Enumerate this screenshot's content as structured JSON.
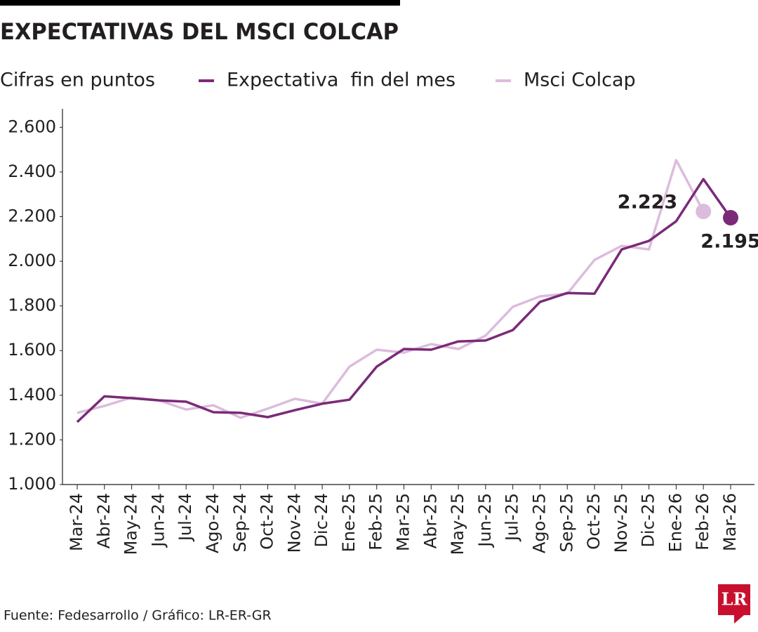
{
  "chart_data": {
    "type": "line",
    "title": "EXPECTATIVAS DEL MSCI COLCAP",
    "subtitle": "Cifras en puntos",
    "categories": [
      "Mar-24",
      "Abr-24",
      "May-24",
      "Jun-24",
      "Jul-24",
      "Ago-24",
      "Sep-24",
      "Oct-24",
      "Nov-24",
      "Dic-24",
      "Ene-25",
      "Feb-25",
      "Mar-25",
      "Abr-25",
      "May-25",
      "Jun-25",
      "Jul-25",
      "Ago-25",
      "Sep-25",
      "Oct-25",
      "Nov-25",
      "Dic-25",
      "Ene-26",
      "Feb-26",
      "Mar-26"
    ],
    "series": [
      {
        "name": "Expectativa  fin del mes",
        "color": "#7b2a78",
        "values": [
          1280,
          1395,
          1387,
          1377,
          1371,
          1324,
          1321,
          1302,
          1333,
          1362,
          1380,
          1528,
          1607,
          1604,
          1641,
          1645,
          1692,
          1818,
          1858,
          1855,
          2053,
          2091,
          2179,
          2368,
          2195
        ],
        "value_labels": [
          null,
          null,
          null,
          null,
          null,
          null,
          null,
          null,
          null,
          null,
          null,
          null,
          null,
          null,
          null,
          null,
          null,
          null,
          null,
          null,
          null,
          null,
          null,
          null,
          "2.195"
        ]
      },
      {
        "name": "Msci Colcap",
        "color": "#dcbcdc",
        "values": [
          1321,
          1352,
          1390,
          1377,
          1336,
          1355,
          1299,
          1340,
          1384,
          1362,
          1528,
          1604,
          1591,
          1629,
          1607,
          1667,
          1796,
          1843,
          1855,
          2006,
          2069,
          2053,
          2453,
          2223,
          null
        ],
        "value_labels": [
          null,
          null,
          null,
          null,
          null,
          null,
          null,
          null,
          null,
          null,
          null,
          null,
          null,
          null,
          null,
          null,
          null,
          null,
          null,
          null,
          null,
          null,
          null,
          "2.223",
          null
        ]
      }
    ],
    "ylim": [
      1000,
      2700
    ],
    "yticks": [
      {
        "value": 1000,
        "label": "1.000"
      },
      {
        "value": 1200,
        "label": "1.200"
      },
      {
        "value": 1400,
        "label": "1.400"
      },
      {
        "value": 1600,
        "label": "1.600"
      },
      {
        "value": 1800,
        "label": "1.800"
      },
      {
        "value": 2000,
        "label": "2.000"
      },
      {
        "value": 2200,
        "label": "2.200"
      },
      {
        "value": 2400,
        "label": "2.400"
      },
      {
        "value": 2600,
        "label": "2.600"
      }
    ],
    "grid": false,
    "source": "Fuente: Fedesarrollo / Gráfico: LR-ER-GR",
    "logo": "LR"
  }
}
